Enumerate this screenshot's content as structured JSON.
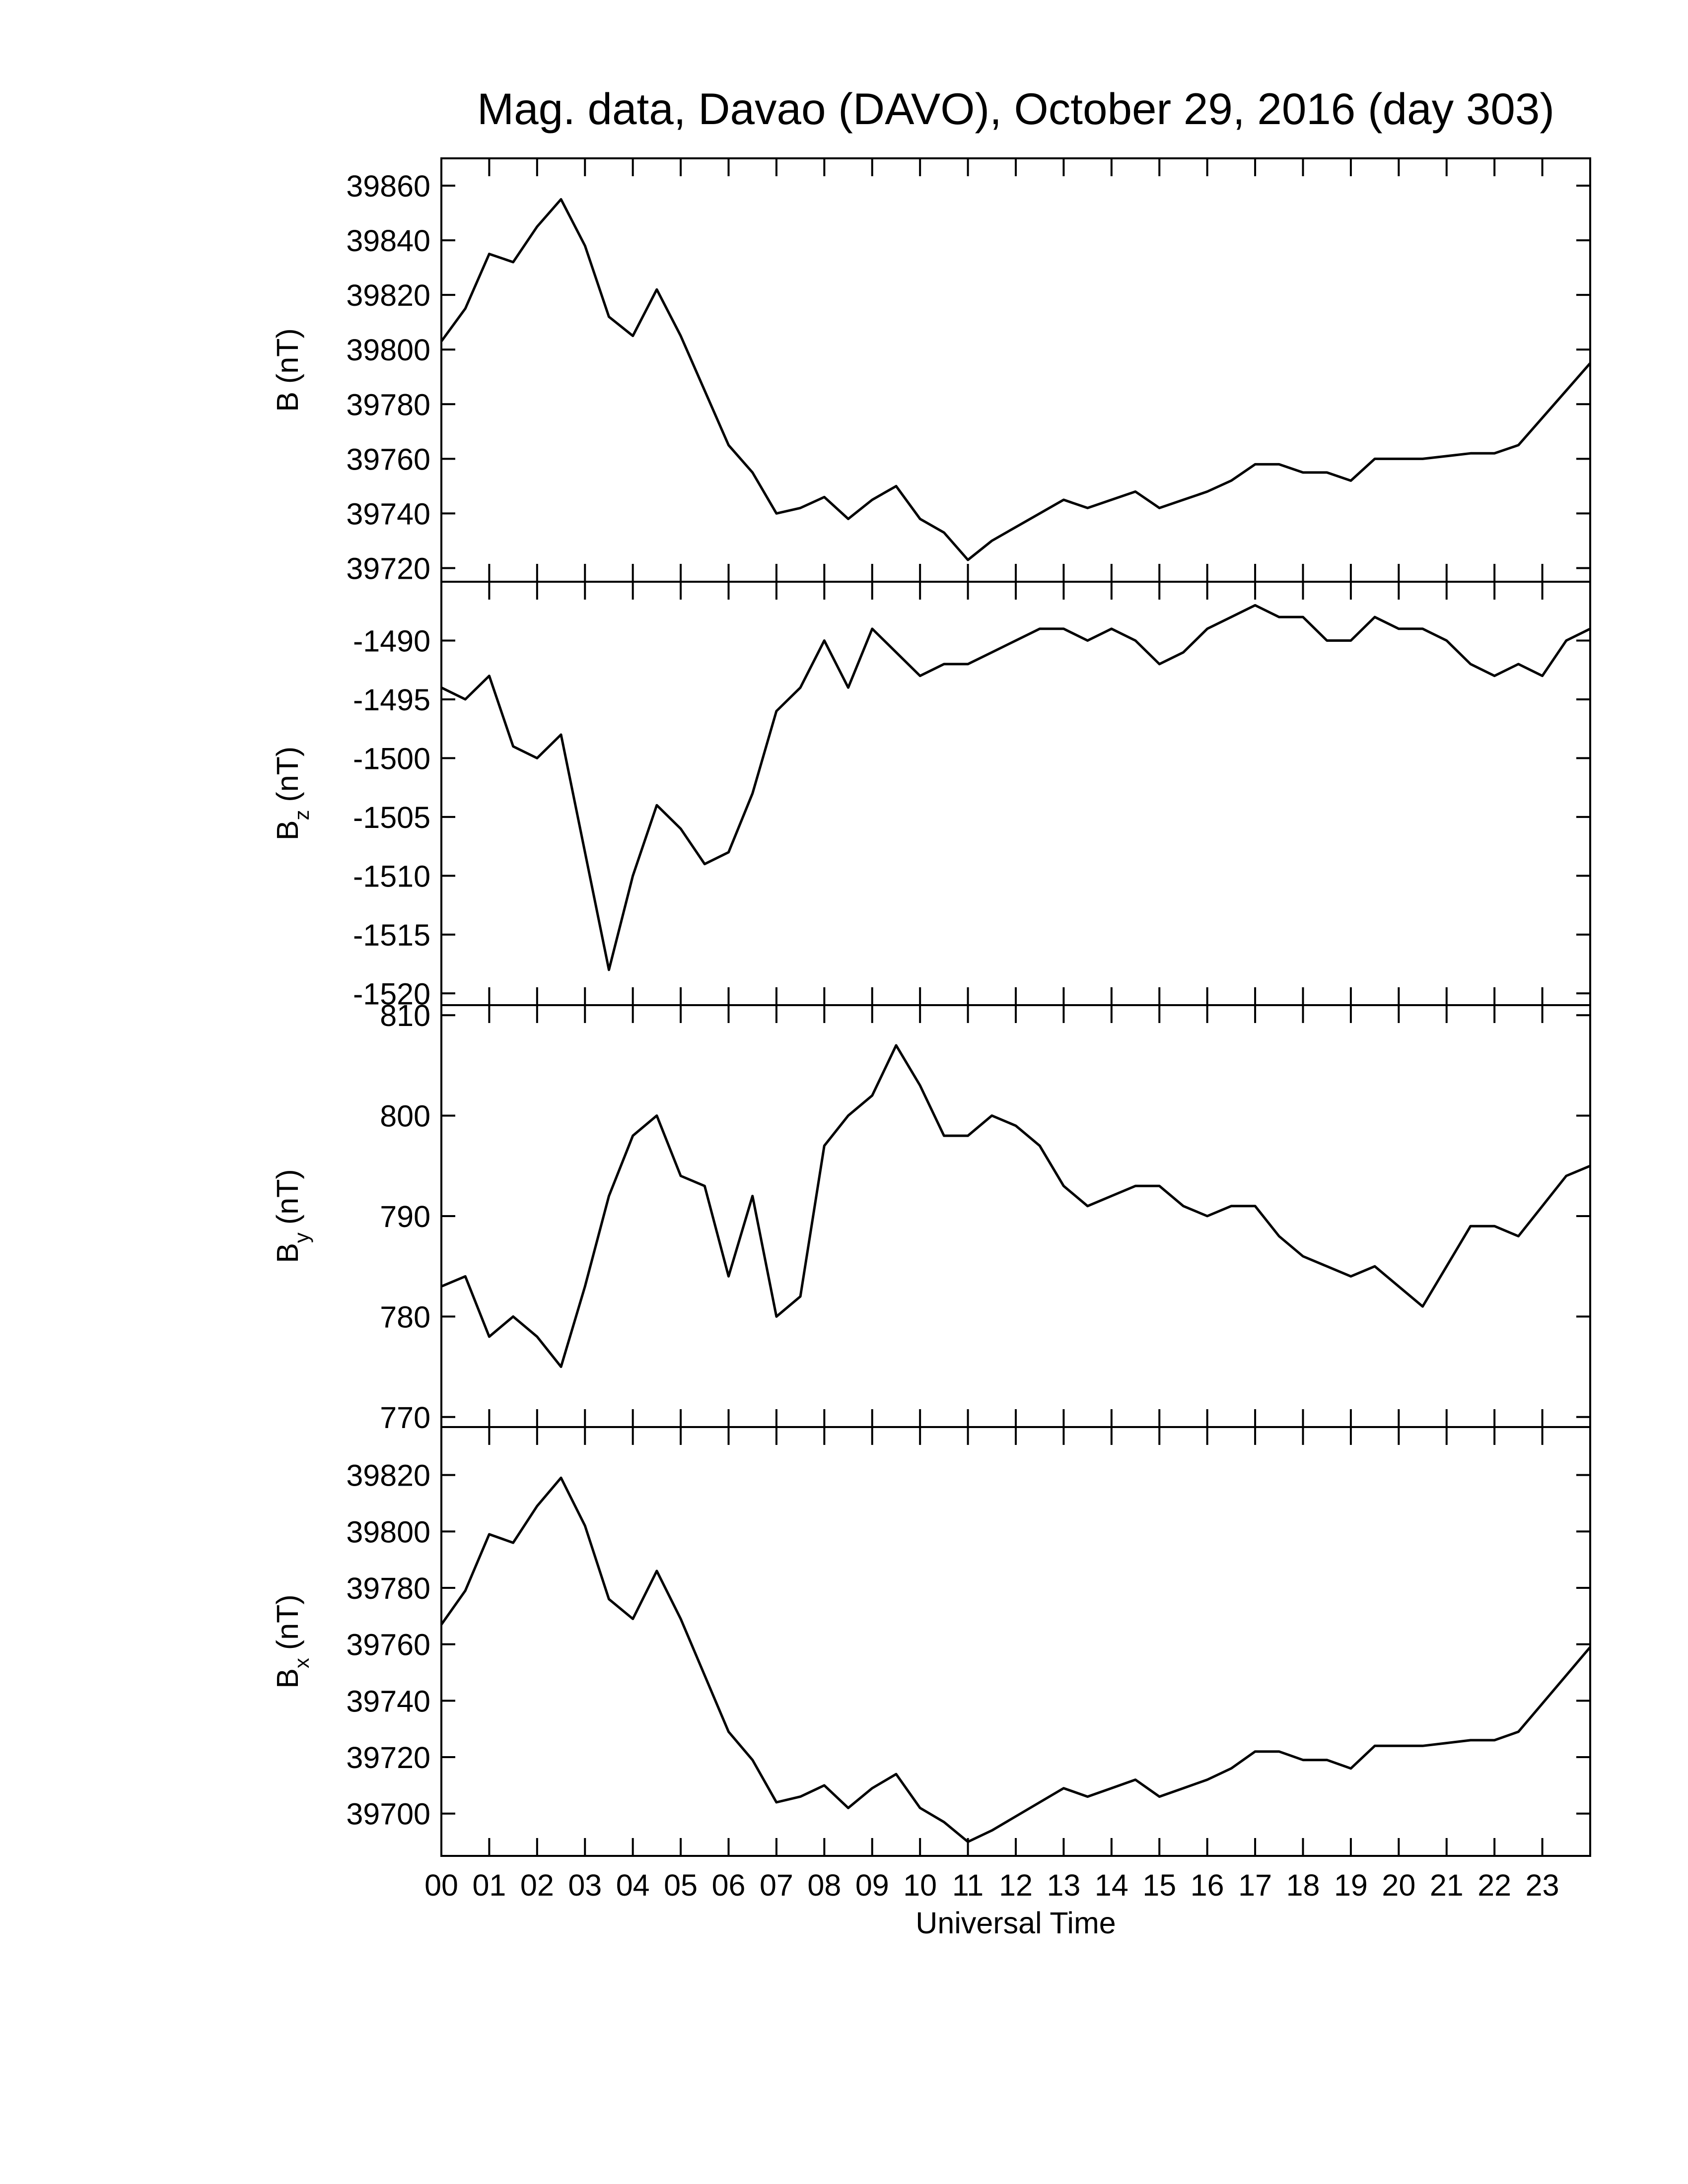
{
  "chart_data": [
    {
      "type": "line",
      "title": "Mag. data, Davao (DAVO), October 29, 2016 (day 303)",
      "ylabel": "B",
      "ylabel_unit": "(nT)",
      "x": [
        0,
        0.5,
        1,
        1.5,
        2,
        2.5,
        3,
        3.5,
        4,
        4.5,
        5,
        5.5,
        6,
        6.5,
        7,
        7.5,
        8,
        8.5,
        9,
        9.5,
        10,
        10.5,
        11,
        11.5,
        12,
        12.5,
        13,
        13.5,
        14,
        14.5,
        15,
        15.5,
        16,
        16.5,
        17,
        17.5,
        18,
        18.5,
        19,
        19.5,
        20,
        20.5,
        21,
        21.5,
        22,
        22.5,
        23,
        23.5,
        24
      ],
      "series": [
        {
          "color": "#000000",
          "values": [
            39803,
            39815,
            39835,
            39832,
            39845,
            39855,
            39838,
            39812,
            39805,
            39822,
            39805,
            39785,
            39765,
            39755,
            39740,
            39742,
            39746,
            39738,
            39745,
            39750,
            39738,
            39733,
            39723,
            39730,
            39735,
            39740,
            39745,
            39742,
            39745,
            39748,
            39742,
            39745,
            39748,
            39752,
            39758,
            39758,
            39755,
            39755,
            39752,
            39760,
            39760,
            39760,
            39761,
            39762,
            39762,
            39765,
            39775,
            39785,
            39795
          ]
        }
      ],
      "xlim": [
        0,
        24
      ],
      "ylim": [
        39715,
        39870
      ],
      "yticks": [
        39720,
        39740,
        39760,
        39780,
        39800,
        39820,
        39840,
        39860
      ]
    },
    {
      "type": "line",
      "ylabel": "B",
      "ylabel_sub": "z",
      "ylabel_unit": "(nT)",
      "x": [
        0,
        0.5,
        1,
        1.5,
        2,
        2.5,
        3,
        3.5,
        4,
        4.5,
        5,
        5.5,
        6,
        6.5,
        7,
        7.5,
        8,
        8.5,
        9,
        9.5,
        10,
        10.5,
        11,
        11.5,
        12,
        12.5,
        13,
        13.5,
        14,
        14.5,
        15,
        15.5,
        16,
        16.5,
        17,
        17.5,
        18,
        18.5,
        19,
        19.5,
        20,
        20.5,
        21,
        21.5,
        22,
        22.5,
        23,
        23.5,
        24
      ],
      "series": [
        {
          "color": "#000000",
          "values": [
            -1494,
            -1495,
            -1493,
            -1499,
            -1500,
            -1498,
            -1508,
            -1518,
            -1510,
            -1504,
            -1506,
            -1509,
            -1508,
            -1503,
            -1496,
            -1494,
            -1490,
            -1494,
            -1489,
            -1491,
            -1493,
            -1492,
            -1492,
            -1491,
            -1490,
            -1489,
            -1489,
            -1490,
            -1489,
            -1490,
            -1492,
            -1491,
            -1489,
            -1488,
            -1487,
            -1488,
            -1488,
            -1490,
            -1490,
            -1488,
            -1489,
            -1489,
            -1490,
            -1492,
            -1493,
            -1492,
            -1493,
            -1490,
            -1489
          ]
        }
      ],
      "xlim": [
        0,
        24
      ],
      "ylim": [
        -1521,
        -1485
      ],
      "yticks": [
        -1520,
        -1515,
        -1510,
        -1505,
        -1500,
        -1495,
        -1490
      ]
    },
    {
      "type": "line",
      "ylabel": "B",
      "ylabel_sub": "y",
      "ylabel_unit": "(nT)",
      "x": [
        0,
        0.5,
        1,
        1.5,
        2,
        2.5,
        3,
        3.5,
        4,
        4.5,
        5,
        5.5,
        6,
        6.5,
        7,
        7.5,
        8,
        8.5,
        9,
        9.5,
        10,
        10.5,
        11,
        11.5,
        12,
        12.5,
        13,
        13.5,
        14,
        14.5,
        15,
        15.5,
        16,
        16.5,
        17,
        17.5,
        18,
        18.5,
        19,
        19.5,
        20,
        20.5,
        21,
        21.5,
        22,
        22.5,
        23,
        23.5,
        24
      ],
      "series": [
        {
          "color": "#000000",
          "values": [
            783,
            784,
            778,
            780,
            778,
            775,
            783,
            792,
            798,
            800,
            794,
            793,
            784,
            792,
            780,
            782,
            797,
            800,
            802,
            807,
            803,
            798,
            798,
            800,
            799,
            797,
            793,
            791,
            792,
            793,
            793,
            791,
            790,
            791,
            791,
            788,
            786,
            785,
            784,
            785,
            783,
            781,
            785,
            789,
            789,
            788,
            791,
            794,
            795
          ]
        }
      ],
      "xlim": [
        0,
        24
      ],
      "ylim": [
        769,
        811
      ],
      "yticks": [
        770,
        780,
        790,
        800,
        810
      ]
    },
    {
      "type": "line",
      "ylabel": "B",
      "ylabel_sub": "x",
      "ylabel_unit": "(nT)",
      "xlabel": "Universal Time",
      "x": [
        0,
        0.5,
        1,
        1.5,
        2,
        2.5,
        3,
        3.5,
        4,
        4.5,
        5,
        5.5,
        6,
        6.5,
        7,
        7.5,
        8,
        8.5,
        9,
        9.5,
        10,
        10.5,
        11,
        11.5,
        12,
        12.5,
        13,
        13.5,
        14,
        14.5,
        15,
        15.5,
        16,
        16.5,
        17,
        17.5,
        18,
        18.5,
        19,
        19.5,
        20,
        20.5,
        21,
        21.5,
        22,
        22.5,
        23,
        23.5,
        24
      ],
      "series": [
        {
          "color": "#000000",
          "values": [
            39767,
            39779,
            39799,
            39796,
            39809,
            39819,
            39802,
            39776,
            39769,
            39786,
            39769,
            39749,
            39729,
            39719,
            39704,
            39706,
            39710,
            39702,
            39709,
            39714,
            39702,
            39697,
            39690,
            39694,
            39699,
            39704,
            39709,
            39706,
            39709,
            39712,
            39706,
            39709,
            39712,
            39716,
            39722,
            39722,
            39719,
            39719,
            39716,
            39724,
            39724,
            39724,
            39725,
            39726,
            39726,
            39729,
            39739,
            39749,
            39759
          ]
        }
      ],
      "xlim": [
        0,
        24
      ],
      "ylim": [
        39685,
        39837
      ],
      "yticks": [
        39700,
        39720,
        39740,
        39760,
        39780,
        39800,
        39820
      ],
      "xticks": [
        {
          "value": 0,
          "label": "00"
        },
        {
          "value": 1,
          "label": "01"
        },
        {
          "value": 2,
          "label": "02"
        },
        {
          "value": 3,
          "label": "03"
        },
        {
          "value": 4,
          "label": "04"
        },
        {
          "value": 5,
          "label": "05"
        },
        {
          "value": 6,
          "label": "06"
        },
        {
          "value": 7,
          "label": "07"
        },
        {
          "value": 8,
          "label": "08"
        },
        {
          "value": 9,
          "label": "09"
        },
        {
          "value": 10,
          "label": "10"
        },
        {
          "value": 11,
          "label": "11"
        },
        {
          "value": 12,
          "label": "12"
        },
        {
          "value": 13,
          "label": "13"
        },
        {
          "value": 14,
          "label": "14"
        },
        {
          "value": 15,
          "label": "15"
        },
        {
          "value": 16,
          "label": "16"
        },
        {
          "value": 17,
          "label": "17"
        },
        {
          "value": 18,
          "label": "18"
        },
        {
          "value": 19,
          "label": "19"
        },
        {
          "value": 20,
          "label": "20"
        },
        {
          "value": 21,
          "label": "21"
        },
        {
          "value": 22,
          "label": "22"
        },
        {
          "value": 23,
          "label": "23"
        }
      ]
    }
  ]
}
